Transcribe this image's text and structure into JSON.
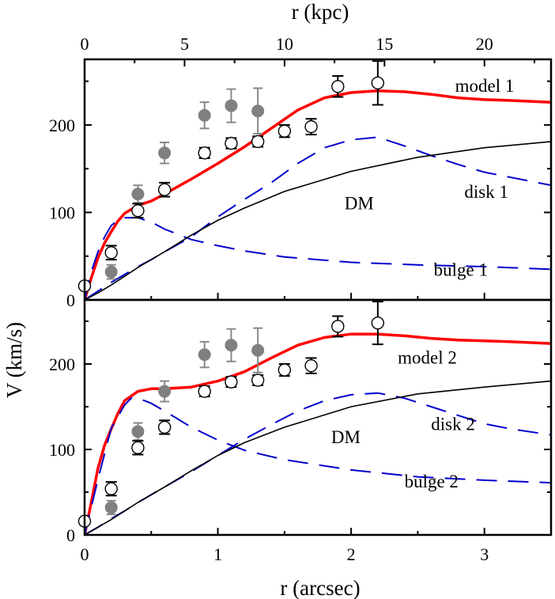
{
  "chart_data": {
    "type": "line",
    "x_axis": {
      "label": "r (arcsec)",
      "range": [
        0,
        3.5
      ],
      "ticks": [
        0,
        1,
        2,
        3
      ],
      "tick_labels": [
        "0",
        "1",
        "2",
        "3"
      ]
    },
    "x_top_axis": {
      "label": "r (kpc)",
      "range": [
        0,
        23.33
      ],
      "ticks": [
        0,
        5,
        10,
        15,
        20
      ],
      "tick_labels": [
        "0",
        "5",
        "10",
        "15",
        "20"
      ]
    },
    "y_axis": {
      "label": "V (km/s)",
      "range": [
        0,
        275
      ],
      "ticks": [
        0,
        100,
        200
      ],
      "tick_labels": [
        "0",
        "100",
        "200"
      ]
    },
    "panels": [
      {
        "id": "top",
        "series": [
          {
            "name": "model 1",
            "color": "#ff0000",
            "style": "solid-thick",
            "x": [
              0,
              0.05,
              0.1,
              0.15,
              0.2,
              0.25,
              0.3,
              0.4,
              0.5,
              0.6,
              0.8,
              1.0,
              1.2,
              1.4,
              1.6,
              1.8,
              2.0,
              2.2,
              2.4,
              2.6,
              2.8,
              3.0,
              3.2,
              3.5
            ],
            "y": [
              0,
              25,
              48,
              65,
              78,
              90,
              99,
              108,
              113,
              121,
              138,
              156,
              175,
              196,
              217,
              231,
              237,
              239,
              238,
              235,
              231,
              229,
              228,
              226
            ]
          },
          {
            "name": "disk 1",
            "color": "#0000cc",
            "style": "dashed",
            "x": [
              0,
              0.1,
              0.2,
              0.3,
              0.4,
              0.5,
              0.6,
              0.8,
              1.0,
              1.2,
              1.4,
              1.6,
              1.8,
              2.0,
              2.2,
              2.4,
              2.6,
              2.8,
              3.0,
              3.2,
              3.5
            ],
            "y": [
              0,
              10,
              20,
              29,
              38,
              46,
              55,
              72,
              95,
              115,
              134,
              156,
              174,
              183,
              186,
              176,
              165,
              155,
              146,
              140,
              131
            ]
          },
          {
            "name": "bulge 1",
            "color": "#0000cc",
            "style": "dashed",
            "x": [
              0,
              0.05,
              0.1,
              0.15,
              0.2,
              0.25,
              0.3,
              0.4,
              0.5,
              0.6,
              0.8,
              1.0,
              1.2,
              1.5,
              2.0,
              2.5,
              3.0,
              3.5
            ],
            "y": [
              0,
              32,
              55,
              72,
              85,
              91,
              94,
              94,
              89,
              81,
              69,
              62,
              56,
              49,
              43,
              40,
              38,
              35
            ]
          },
          {
            "name": "DM",
            "color": "#000000",
            "style": "solid-thin",
            "x": [
              0,
              0.1,
              0.2,
              0.3,
              0.4,
              0.5,
              0.6,
              0.8,
              1.0,
              1.2,
              1.5,
              2.0,
              2.5,
              3.0,
              3.5
            ],
            "y": [
              0,
              8,
              17,
              27,
              37,
              46,
              55,
              74,
              91,
              105,
              124,
              147,
              163,
              174,
              181
            ]
          }
        ],
        "points_open": {
          "x": [
            0.0,
            0.2,
            0.4,
            0.6,
            0.9,
            1.1,
            1.3,
            1.5,
            1.7,
            1.9,
            2.2
          ],
          "y": [
            16,
            54,
            102,
            126,
            168,
            179,
            181,
            193,
            198,
            244,
            248
          ],
          "err": [
            0,
            8,
            8,
            8,
            6,
            6,
            6,
            7,
            9,
            12,
            25
          ]
        },
        "points_filled": {
          "x": [
            0.2,
            0.4,
            0.6,
            0.9,
            1.1,
            1.3
          ],
          "y": [
            32,
            121,
            168,
            211,
            222,
            216
          ],
          "err": [
            8,
            10,
            12,
            15,
            19,
            26
          ]
        },
        "annotations": [
          {
            "text": "model 1",
            "x": 2.78,
            "y": 245
          },
          {
            "text": "disk 1",
            "x": 2.85,
            "y": 124
          },
          {
            "text": "DM",
            "x": 1.95,
            "y": 111
          },
          {
            "text": "bulge 1",
            "x": 2.62,
            "y": 35
          }
        ]
      },
      {
        "id": "bottom",
        "series": [
          {
            "name": "model 2",
            "color": "#ff0000",
            "style": "solid-thick",
            "x": [
              0,
              0.05,
              0.1,
              0.15,
              0.2,
              0.25,
              0.3,
              0.4,
              0.5,
              0.6,
              0.8,
              1.0,
              1.2,
              1.4,
              1.6,
              1.8,
              2.0,
              2.2,
              2.4,
              2.6,
              2.8,
              3.0,
              3.2,
              3.5
            ],
            "y": [
              0,
              38,
              78,
              105,
              124,
              142,
              157,
              168,
              171,
              171,
              173,
              180,
              191,
              207,
              222,
              231,
              235,
              235,
              233,
              230,
              228,
              227,
              226,
              224
            ]
          },
          {
            "name": "disk 2",
            "color": "#0000cc",
            "style": "dashed",
            "x": [
              0,
              0.1,
              0.2,
              0.3,
              0.4,
              0.5,
              0.6,
              0.8,
              1.0,
              1.2,
              1.4,
              1.6,
              1.8,
              2.0,
              2.2,
              2.4,
              2.6,
              2.8,
              3.0,
              3.2,
              3.5
            ],
            "y": [
              0,
              9,
              19,
              28,
              38,
              47,
              56,
              74,
              93,
              112,
              129,
              145,
              157,
              164,
              166,
              160,
              150,
              140,
              130,
              124,
              117
            ]
          },
          {
            "name": "bulge 2",
            "color": "#0000cc",
            "style": "dashed",
            "x": [
              0,
              0.1,
              0.2,
              0.3,
              0.35,
              0.4,
              0.5,
              0.6,
              0.8,
              1.0,
              1.2,
              1.5,
              2.0,
              2.5,
              3.0,
              3.5
            ],
            "y": [
              0,
              65,
              125,
              152,
              160,
              160,
              154,
              145,
              126,
              111,
              99,
              88,
              76,
              68,
              64,
              61
            ]
          },
          {
            "name": "DM",
            "color": "#000000",
            "style": "solid-thin",
            "x": [
              0,
              0.1,
              0.2,
              0.3,
              0.4,
              0.5,
              0.6,
              0.8,
              1.0,
              1.2,
              1.5,
              2.0,
              2.5,
              3.0,
              3.5
            ],
            "y": [
              0,
              9,
              18,
              28,
              38,
              47,
              56,
              75,
              93,
              108,
              126,
              150,
              165,
              173,
              180
            ]
          }
        ],
        "points_open": {
          "x": [
            0.0,
            0.2,
            0.4,
            0.6,
            0.9,
            1.1,
            1.3,
            1.5,
            1.7,
            1.9,
            2.2
          ],
          "y": [
            16,
            54,
            102,
            126,
            168,
            179,
            181,
            193,
            198,
            244,
            248
          ],
          "err": [
            0,
            8,
            8,
            8,
            6,
            6,
            6,
            7,
            9,
            12,
            25
          ]
        },
        "points_filled": {
          "x": [
            0.2,
            0.4,
            0.6,
            0.9,
            1.1,
            1.3
          ],
          "y": [
            32,
            121,
            168,
            211,
            222,
            216
          ],
          "err": [
            8,
            10,
            12,
            15,
            19,
            26
          ]
        },
        "annotations": [
          {
            "text": "model 2",
            "x": 2.35,
            "y": 208
          },
          {
            "text": "disk 2",
            "x": 2.6,
            "y": 130
          },
          {
            "text": "DM",
            "x": 1.85,
            "y": 115
          },
          {
            "text": "bulge 2",
            "x": 2.4,
            "y": 63
          }
        ]
      }
    ]
  }
}
